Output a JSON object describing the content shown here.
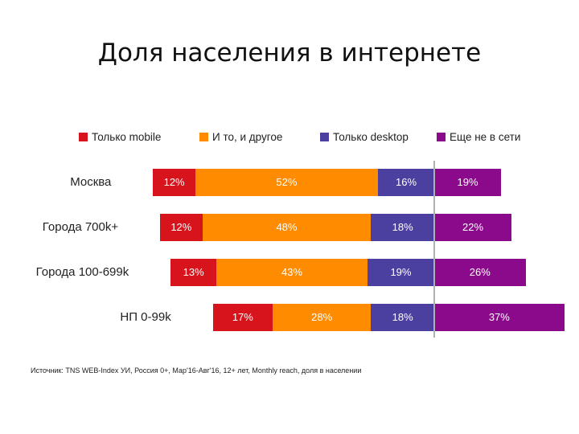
{
  "title": "Доля населения в интернете",
  "source": "Источник: TNS WEB-Index УИ, Россия 0+, Мар'16-Авг'16, 12+ лет, Monthly reach, доля в населении",
  "chart_data": {
    "type": "bar",
    "stacked": true,
    "orientation": "horizontal",
    "title": "Доля населения в интернете",
    "legend_placement": "top",
    "categories": [
      "Москва",
      "Города 700k+",
      "Города 100-699k",
      "НП 0-99k"
    ],
    "series": [
      {
        "name": "Только mobile",
        "color": "#d7141c",
        "values": [
          12,
          12,
          13,
          17
        ]
      },
      {
        "name": "И то, и другое",
        "color": "#ff8c00",
        "values": [
          52,
          48,
          43,
          28
        ]
      },
      {
        "name": "Только desktop",
        "color": "#4b3fa0",
        "values": [
          16,
          18,
          19,
          18
        ]
      },
      {
        "name": "Еще не в сети",
        "color": "#8b0a8b",
        "values": [
          19,
          22,
          26,
          37
        ]
      }
    ],
    "value_suffix": "%",
    "anchor_series_index": 2
  }
}
